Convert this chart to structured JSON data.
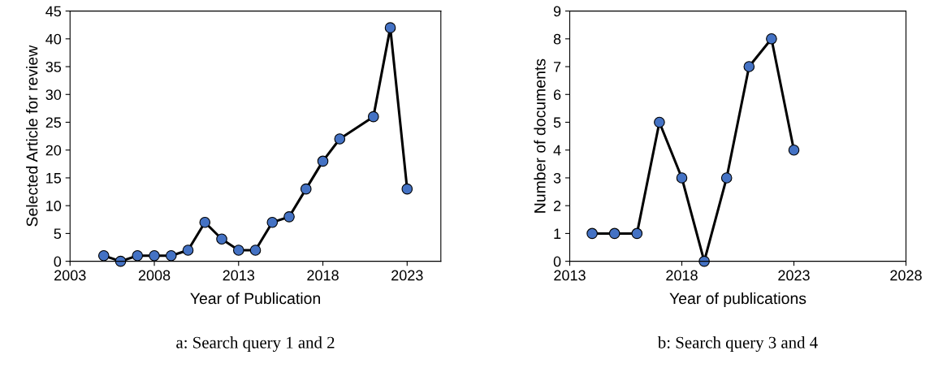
{
  "chart_data": [
    {
      "type": "line",
      "xlabel": "Year of Publication",
      "ylabel": "Selected Article for review",
      "annotations": [
        "a: Search query 1 and 2"
      ],
      "x": [
        2005,
        2006,
        2007,
        2008,
        2009,
        2010,
        2011,
        2012,
        2013,
        2014,
        2015,
        2016,
        2017,
        2018,
        2019,
        2021,
        2022,
        2023
      ],
      "series": [
        {
          "color": "#4472c4",
          "values": [
            1,
            0,
            1,
            1,
            1,
            2,
            7,
            4,
            2,
            2,
            7,
            8,
            13,
            18,
            22,
            26,
            42,
            13
          ]
        }
      ],
      "xlim": [
        2003,
        2025
      ],
      "xticks": [
        2003,
        2008,
        2013,
        2018,
        2023
      ],
      "ylim": [
        0,
        45
      ],
      "yticks": [
        0,
        5,
        10,
        15,
        20,
        25,
        30,
        35,
        40,
        45
      ],
      "marker": "circle",
      "line_style": "solid",
      "grid": false
    },
    {
      "type": "line",
      "xlabel": "Year of publications",
      "ylabel": "Number of documents",
      "annotations": [
        "b: Search query 3 and 4"
      ],
      "x": [
        2014,
        2015,
        2016,
        2017,
        2018,
        2019,
        2020,
        2021,
        2022,
        2023
      ],
      "series": [
        {
          "color": "#4472c4",
          "values": [
            1,
            1,
            1,
            5,
            3,
            0,
            3,
            7,
            8,
            4
          ]
        }
      ],
      "xlim": [
        2013,
        2028
      ],
      "xticks": [
        2013,
        2018,
        2023,
        2028
      ],
      "ylim": [
        0,
        9
      ],
      "yticks": [
        0,
        1,
        2,
        3,
        4,
        5,
        6,
        7,
        8,
        9
      ],
      "marker": "circle",
      "line_style": "solid",
      "grid": false
    }
  ]
}
